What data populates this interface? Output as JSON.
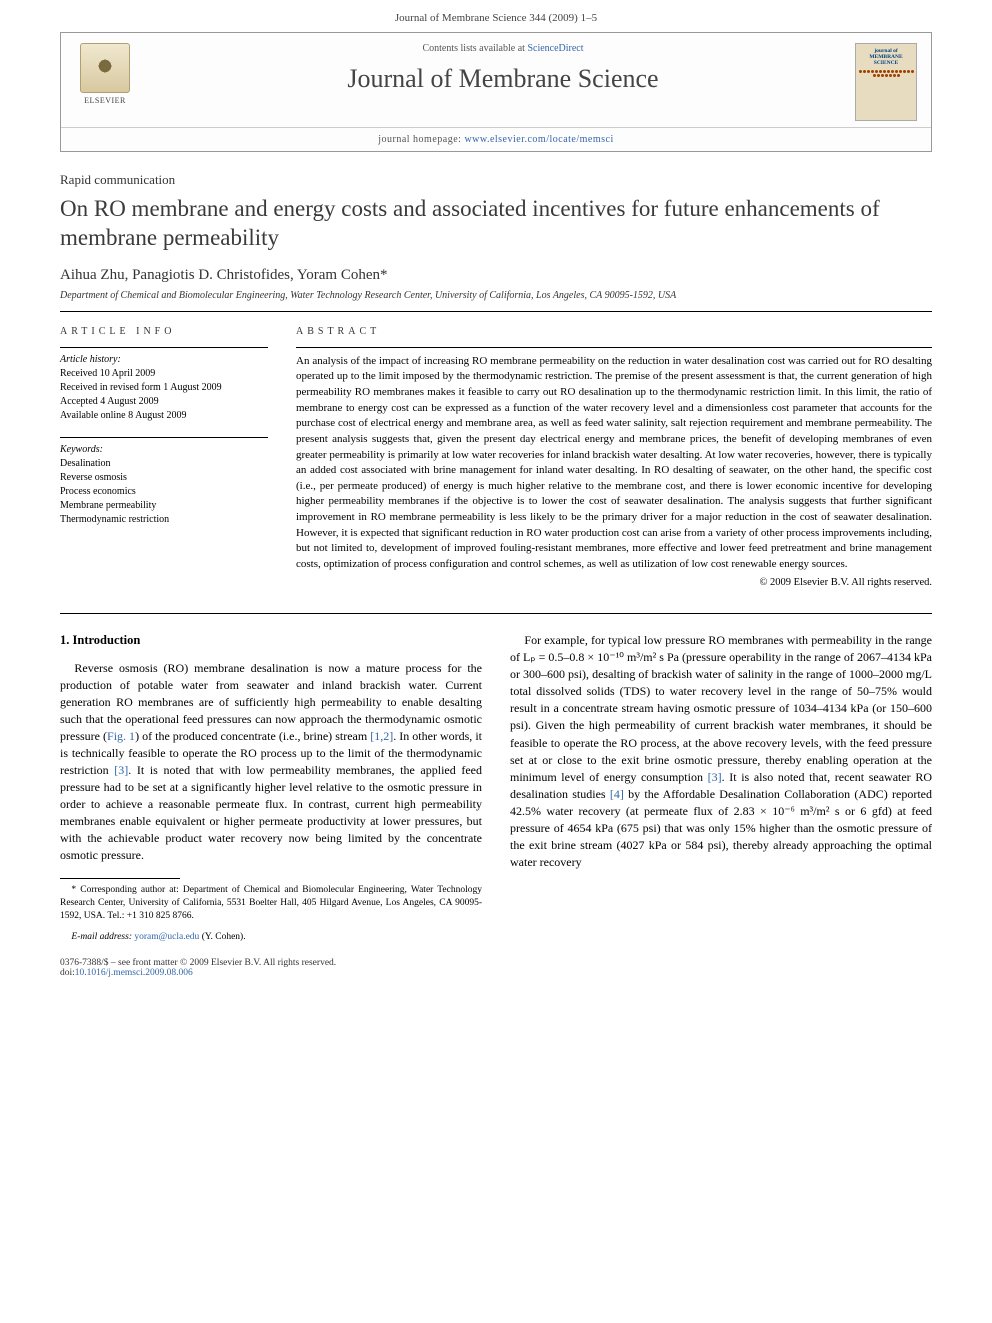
{
  "header": {
    "citation": "Journal of Membrane Science 344 (2009) 1–5"
  },
  "journalBox": {
    "contentsPrefix": "Contents lists available at ",
    "contentsLink": "ScienceDirect",
    "journalName": "Journal of Membrane Science",
    "homepagePrefix": "journal homepage: ",
    "homepageLink": "www.elsevier.com/locate/memsci",
    "publisherLogo": "ELSEVIER",
    "coverTitle": "journal of MEMBRANE SCIENCE"
  },
  "article": {
    "type": "Rapid communication",
    "title": "On RO membrane and energy costs and associated incentives for future enhancements of membrane permeability",
    "authors": "Aihua Zhu, Panagiotis D. Christofides, Yoram Cohen*",
    "affiliation": "Department of Chemical and Biomolecular Engineering, Water Technology Research Center, University of California, Los Angeles, CA 90095-1592, USA"
  },
  "info": {
    "heading": "ARTICLE INFO",
    "historyLabel": "Article history:",
    "history": [
      "Received 10 April 2009",
      "Received in revised form 1 August 2009",
      "Accepted 4 August 2009",
      "Available online 8 August 2009"
    ],
    "keywordsLabel": "Keywords:",
    "keywords": [
      "Desalination",
      "Reverse osmosis",
      "Process economics",
      "Membrane permeability",
      "Thermodynamic restriction"
    ]
  },
  "abstract": {
    "heading": "ABSTRACT",
    "text": "An analysis of the impact of increasing RO membrane permeability on the reduction in water desalination cost was carried out for RO desalting operated up to the limit imposed by the thermodynamic restriction. The premise of the present assessment is that, the current generation of high permeability RO membranes makes it feasible to carry out RO desalination up to the thermodynamic restriction limit. In this limit, the ratio of membrane to energy cost can be expressed as a function of the water recovery level and a dimensionless cost parameter that accounts for the purchase cost of electrical energy and membrane area, as well as feed water salinity, salt rejection requirement and membrane permeability. The present analysis suggests that, given the present day electrical energy and membrane prices, the benefit of developing membranes of even greater permeability is primarily at low water recoveries for inland brackish water desalting. At low water recoveries, however, there is typically an added cost associated with brine management for inland water desalting. In RO desalting of seawater, on the other hand, the specific cost (i.e., per permeate produced) of energy is much higher relative to the membrane cost, and there is lower economic incentive for developing higher permeability membranes if the objective is to lower the cost of seawater desalination. The analysis suggests that further significant improvement in RO membrane permeability is less likely to be the primary driver for a major reduction in the cost of seawater desalination. However, it is expected that significant reduction in RO water production cost can arise from a variety of other process improvements including, but not limited to, development of improved fouling-resistant membranes, more effective and lower feed pretreatment and brine management costs, optimization of process configuration and control schemes, as well as utilization of low cost renewable energy sources.",
    "copyright": "© 2009 Elsevier B.V. All rights reserved."
  },
  "body": {
    "sectionHead": "1. Introduction",
    "p1a": "Reverse osmosis (RO) membrane desalination is now a mature process for the production of potable water from seawater and inland brackish water. Current generation RO membranes are of sufficiently high permeability to enable desalting such that the operational feed pressures can now approach the thermodynamic osmotic pressure (",
    "fig1": "Fig. 1",
    "p1b": ") of the produced concentrate (i.e., brine) stream ",
    "ref12": "[1,2]",
    "p1c": ". In other words, it is technically feasible to operate the RO process up to the limit of the thermodynamic restriction ",
    "ref3": "[3]",
    "p1d": ". It is noted that with low permeability membranes, the applied feed pressure had to be set at a significantly higher level relative to the osmotic pressure in order to achieve a reasonable permeate flux. In contrast, current high permeability membranes enable equivalent or higher permeate productivity at lower pressures, but with the achievable product water recovery now being limited by the concentrate osmotic pressure.",
    "p2a": "For example, for typical low pressure RO membranes with permeability in the range of Lₚ = 0.5–0.8 × 10⁻¹⁰ m³/m² s Pa (pressure operability in the range of 2067–4134 kPa or 300–600 psi), desalting of brackish water of salinity in the range of 1000–2000 mg/L total dissolved solids (TDS) to water recovery level in the range of 50–75% would result in a concentrate stream having osmotic pressure of 1034–4134 kPa (or 150–600 psi). Given the high permeability of current brackish water membranes, it should be feasible to operate the RO process, at the above recovery levels, with the feed pressure set at or close to the exit brine osmotic pressure, thereby enabling operation at the minimum level of energy consumption ",
    "ref3b": "[3]",
    "p2b": ". It is also noted that, recent seawater RO desalination studies ",
    "ref4": "[4]",
    "p2c": " by the Affordable Desalination Collaboration (ADC) reported 42.5% water recovery (at permeate flux of 2.83 × 10⁻⁶ m³/m² s or 6 gfd) at feed pressure of 4654 kPa (675 psi) that was only 15% higher than the osmotic pressure of the exit brine stream (4027 kPa or 584 psi), thereby already approaching the optimal water recovery"
  },
  "footnote": {
    "corrLabel": "* Corresponding author at: Department of Chemical and Biomolecular Engineering, Water Technology Research Center, University of California, 5531 Boelter Hall, 405 Hilgard Avenue, Los Angeles, CA 90095-1592, USA. Tel.: +1 310 825 8766.",
    "emailLabel": "E-mail address: ",
    "email": "yoram@ucla.edu",
    "emailSuffix": " (Y. Cohen)."
  },
  "footer": {
    "line1": "0376-7388/$ – see front matter © 2009 Elsevier B.V. All rights reserved.",
    "doiPrefix": "doi:",
    "doi": "10.1016/j.memsci.2009.08.006"
  },
  "colors": {
    "link": "#3366aa",
    "text": "#000000",
    "headerText": "#444444"
  }
}
